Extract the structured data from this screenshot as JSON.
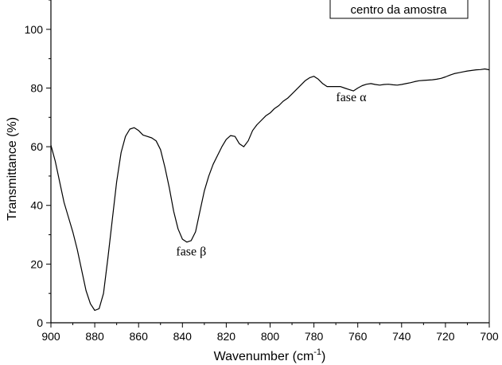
{
  "chart_data": {
    "type": "line",
    "title": "",
    "xlabel": "Wavenumber (cm",
    "xlabel_sup": "-1",
    "xlabel_suffix": ")",
    "ylabel": "Transmittance (%)",
    "xlim": [
      900,
      700
    ],
    "ylim": [
      0,
      110
    ],
    "x_reversed": true,
    "grid": false,
    "x_ticks": [
      900,
      880,
      860,
      840,
      820,
      800,
      780,
      760,
      740,
      720,
      700
    ],
    "y_ticks": [
      0,
      20,
      40,
      60,
      80,
      100
    ],
    "legend": {
      "placement": "top-right",
      "entries": [
        "centro da amostra"
      ]
    },
    "annotations": [
      {
        "text": "fase β",
        "x": 836,
        "y": 23
      },
      {
        "text": "fase α",
        "x": 763,
        "y": 75.5
      }
    ],
    "series": [
      {
        "name": "centro da amostra",
        "color": "#000000",
        "points": [
          [
            900,
            60.5
          ],
          [
            898,
            55
          ],
          [
            896,
            48
          ],
          [
            894,
            41
          ],
          [
            892,
            36
          ],
          [
            890,
            31
          ],
          [
            888,
            25
          ],
          [
            886,
            18
          ],
          [
            884,
            11
          ],
          [
            882,
            6.5
          ],
          [
            880,
            4.2
          ],
          [
            878,
            4.8
          ],
          [
            876,
            10
          ],
          [
            874,
            22
          ],
          [
            872,
            35
          ],
          [
            870,
            48
          ],
          [
            868,
            58
          ],
          [
            866,
            63.5
          ],
          [
            864,
            66
          ],
          [
            862,
            66.5
          ],
          [
            860,
            65.5
          ],
          [
            858,
            64
          ],
          [
            856,
            63.5
          ],
          [
            854,
            63
          ],
          [
            852,
            62
          ],
          [
            850,
            59
          ],
          [
            848,
            53
          ],
          [
            846,
            46
          ],
          [
            844,
            38
          ],
          [
            842,
            32
          ],
          [
            840,
            28.5
          ],
          [
            838,
            27.5
          ],
          [
            836,
            28
          ],
          [
            834,
            31
          ],
          [
            832,
            38
          ],
          [
            830,
            45
          ],
          [
            828,
            50
          ],
          [
            826,
            54
          ],
          [
            824,
            57
          ],
          [
            822,
            60
          ],
          [
            820,
            62.5
          ],
          [
            818,
            63.8
          ],
          [
            816,
            63.5
          ],
          [
            814,
            61
          ],
          [
            812,
            60
          ],
          [
            810,
            62
          ],
          [
            808,
            65.5
          ],
          [
            806,
            67.5
          ],
          [
            804,
            69
          ],
          [
            802,
            70.5
          ],
          [
            800,
            71.5
          ],
          [
            798,
            73
          ],
          [
            796,
            74
          ],
          [
            794,
            75.5
          ],
          [
            792,
            76.5
          ],
          [
            790,
            78
          ],
          [
            788,
            79.5
          ],
          [
            786,
            81
          ],
          [
            784,
            82.5
          ],
          [
            782,
            83.5
          ],
          [
            780,
            84
          ],
          [
            778,
            83
          ],
          [
            776,
            81.5
          ],
          [
            774,
            80.5
          ],
          [
            772,
            80.5
          ],
          [
            770,
            80.5
          ],
          [
            768,
            80.5
          ],
          [
            766,
            80
          ],
          [
            764,
            79.5
          ],
          [
            762,
            79
          ],
          [
            760,
            80
          ],
          [
            758,
            80.8
          ],
          [
            756,
            81.3
          ],
          [
            754,
            81.5
          ],
          [
            752,
            81.2
          ],
          [
            750,
            81
          ],
          [
            748,
            81.2
          ],
          [
            746,
            81.3
          ],
          [
            744,
            81.1
          ],
          [
            742,
            81
          ],
          [
            740,
            81.2
          ],
          [
            738,
            81.5
          ],
          [
            736,
            81.8
          ],
          [
            734,
            82.2
          ],
          [
            732,
            82.5
          ],
          [
            730,
            82.6
          ],
          [
            728,
            82.7
          ],
          [
            726,
            82.8
          ],
          [
            724,
            83
          ],
          [
            722,
            83.3
          ],
          [
            720,
            83.8
          ],
          [
            718,
            84.4
          ],
          [
            716,
            84.9
          ],
          [
            714,
            85.2
          ],
          [
            712,
            85.5
          ],
          [
            710,
            85.8
          ],
          [
            708,
            86
          ],
          [
            706,
            86.2
          ],
          [
            704,
            86.3
          ],
          [
            702,
            86.5
          ],
          [
            700,
            86.2
          ]
        ]
      }
    ]
  }
}
